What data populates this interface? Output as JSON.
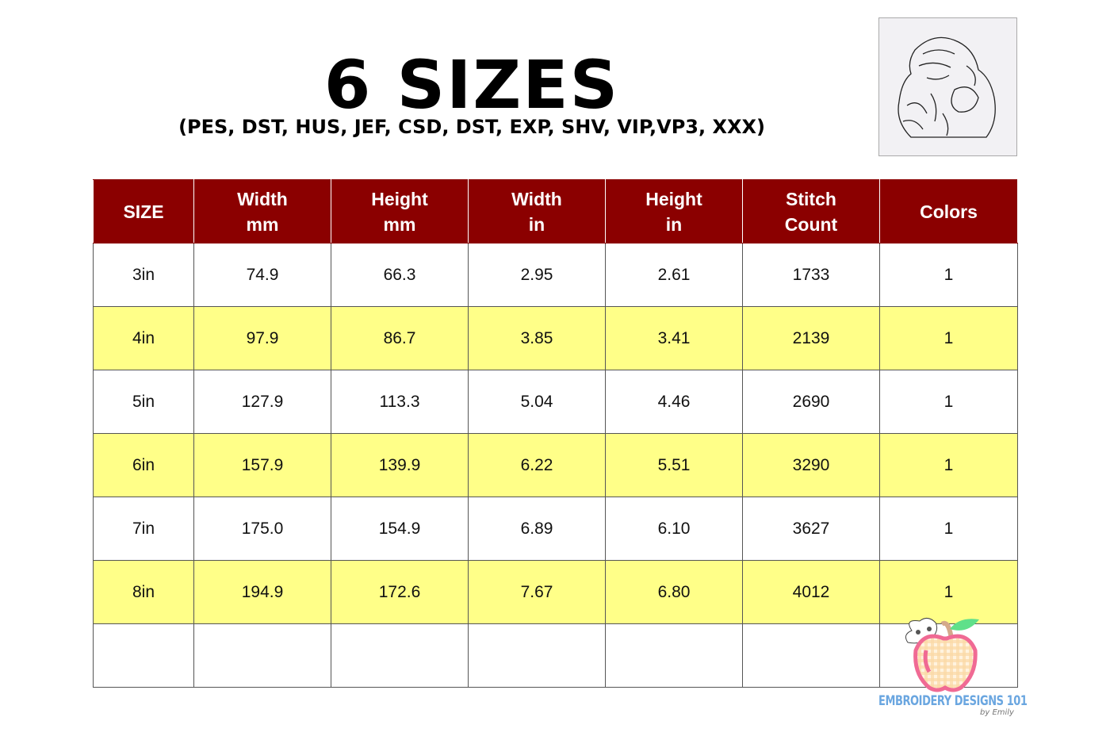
{
  "title": "6 SIZES",
  "subtitle": "(PES, DST, HUS, JEF, CSD, DST, EXP, SHV, VIP,VP3, XXX)",
  "table": {
    "headers": [
      [
        "SIZE",
        ""
      ],
      [
        "Width",
        "mm"
      ],
      [
        "Height",
        "mm"
      ],
      [
        "Width",
        "in"
      ],
      [
        "Height",
        "in"
      ],
      [
        "Stitch",
        "Count"
      ],
      [
        "Colors",
        ""
      ]
    ],
    "rows": [
      [
        "3in",
        "74.9",
        "66.3",
        "2.95",
        "2.61",
        "1733",
        "1"
      ],
      [
        "4in",
        "97.9",
        "86.7",
        "3.85",
        "3.41",
        "2139",
        "1"
      ],
      [
        "5in",
        "127.9",
        "113.3",
        "5.04",
        "4.46",
        "2690",
        "1"
      ],
      [
        "6in",
        "157.9",
        "139.9",
        "6.22",
        "5.51",
        "3290",
        "1"
      ],
      [
        "7in",
        "175.0",
        "154.9",
        "6.89",
        "6.10",
        "3627",
        "1"
      ],
      [
        "8in",
        "194.9",
        "172.6",
        "7.67",
        "6.80",
        "4012",
        "1"
      ],
      [
        "",
        "",
        "",
        "",
        "",
        "",
        ""
      ]
    ]
  },
  "logo": {
    "brand": "EMBROIDERY DESIGNS 101",
    "byline": "by Emily"
  },
  "colors": {
    "header": "#8b0000",
    "highlight": "#ffff88",
    "brand": "#6aa6e0"
  }
}
